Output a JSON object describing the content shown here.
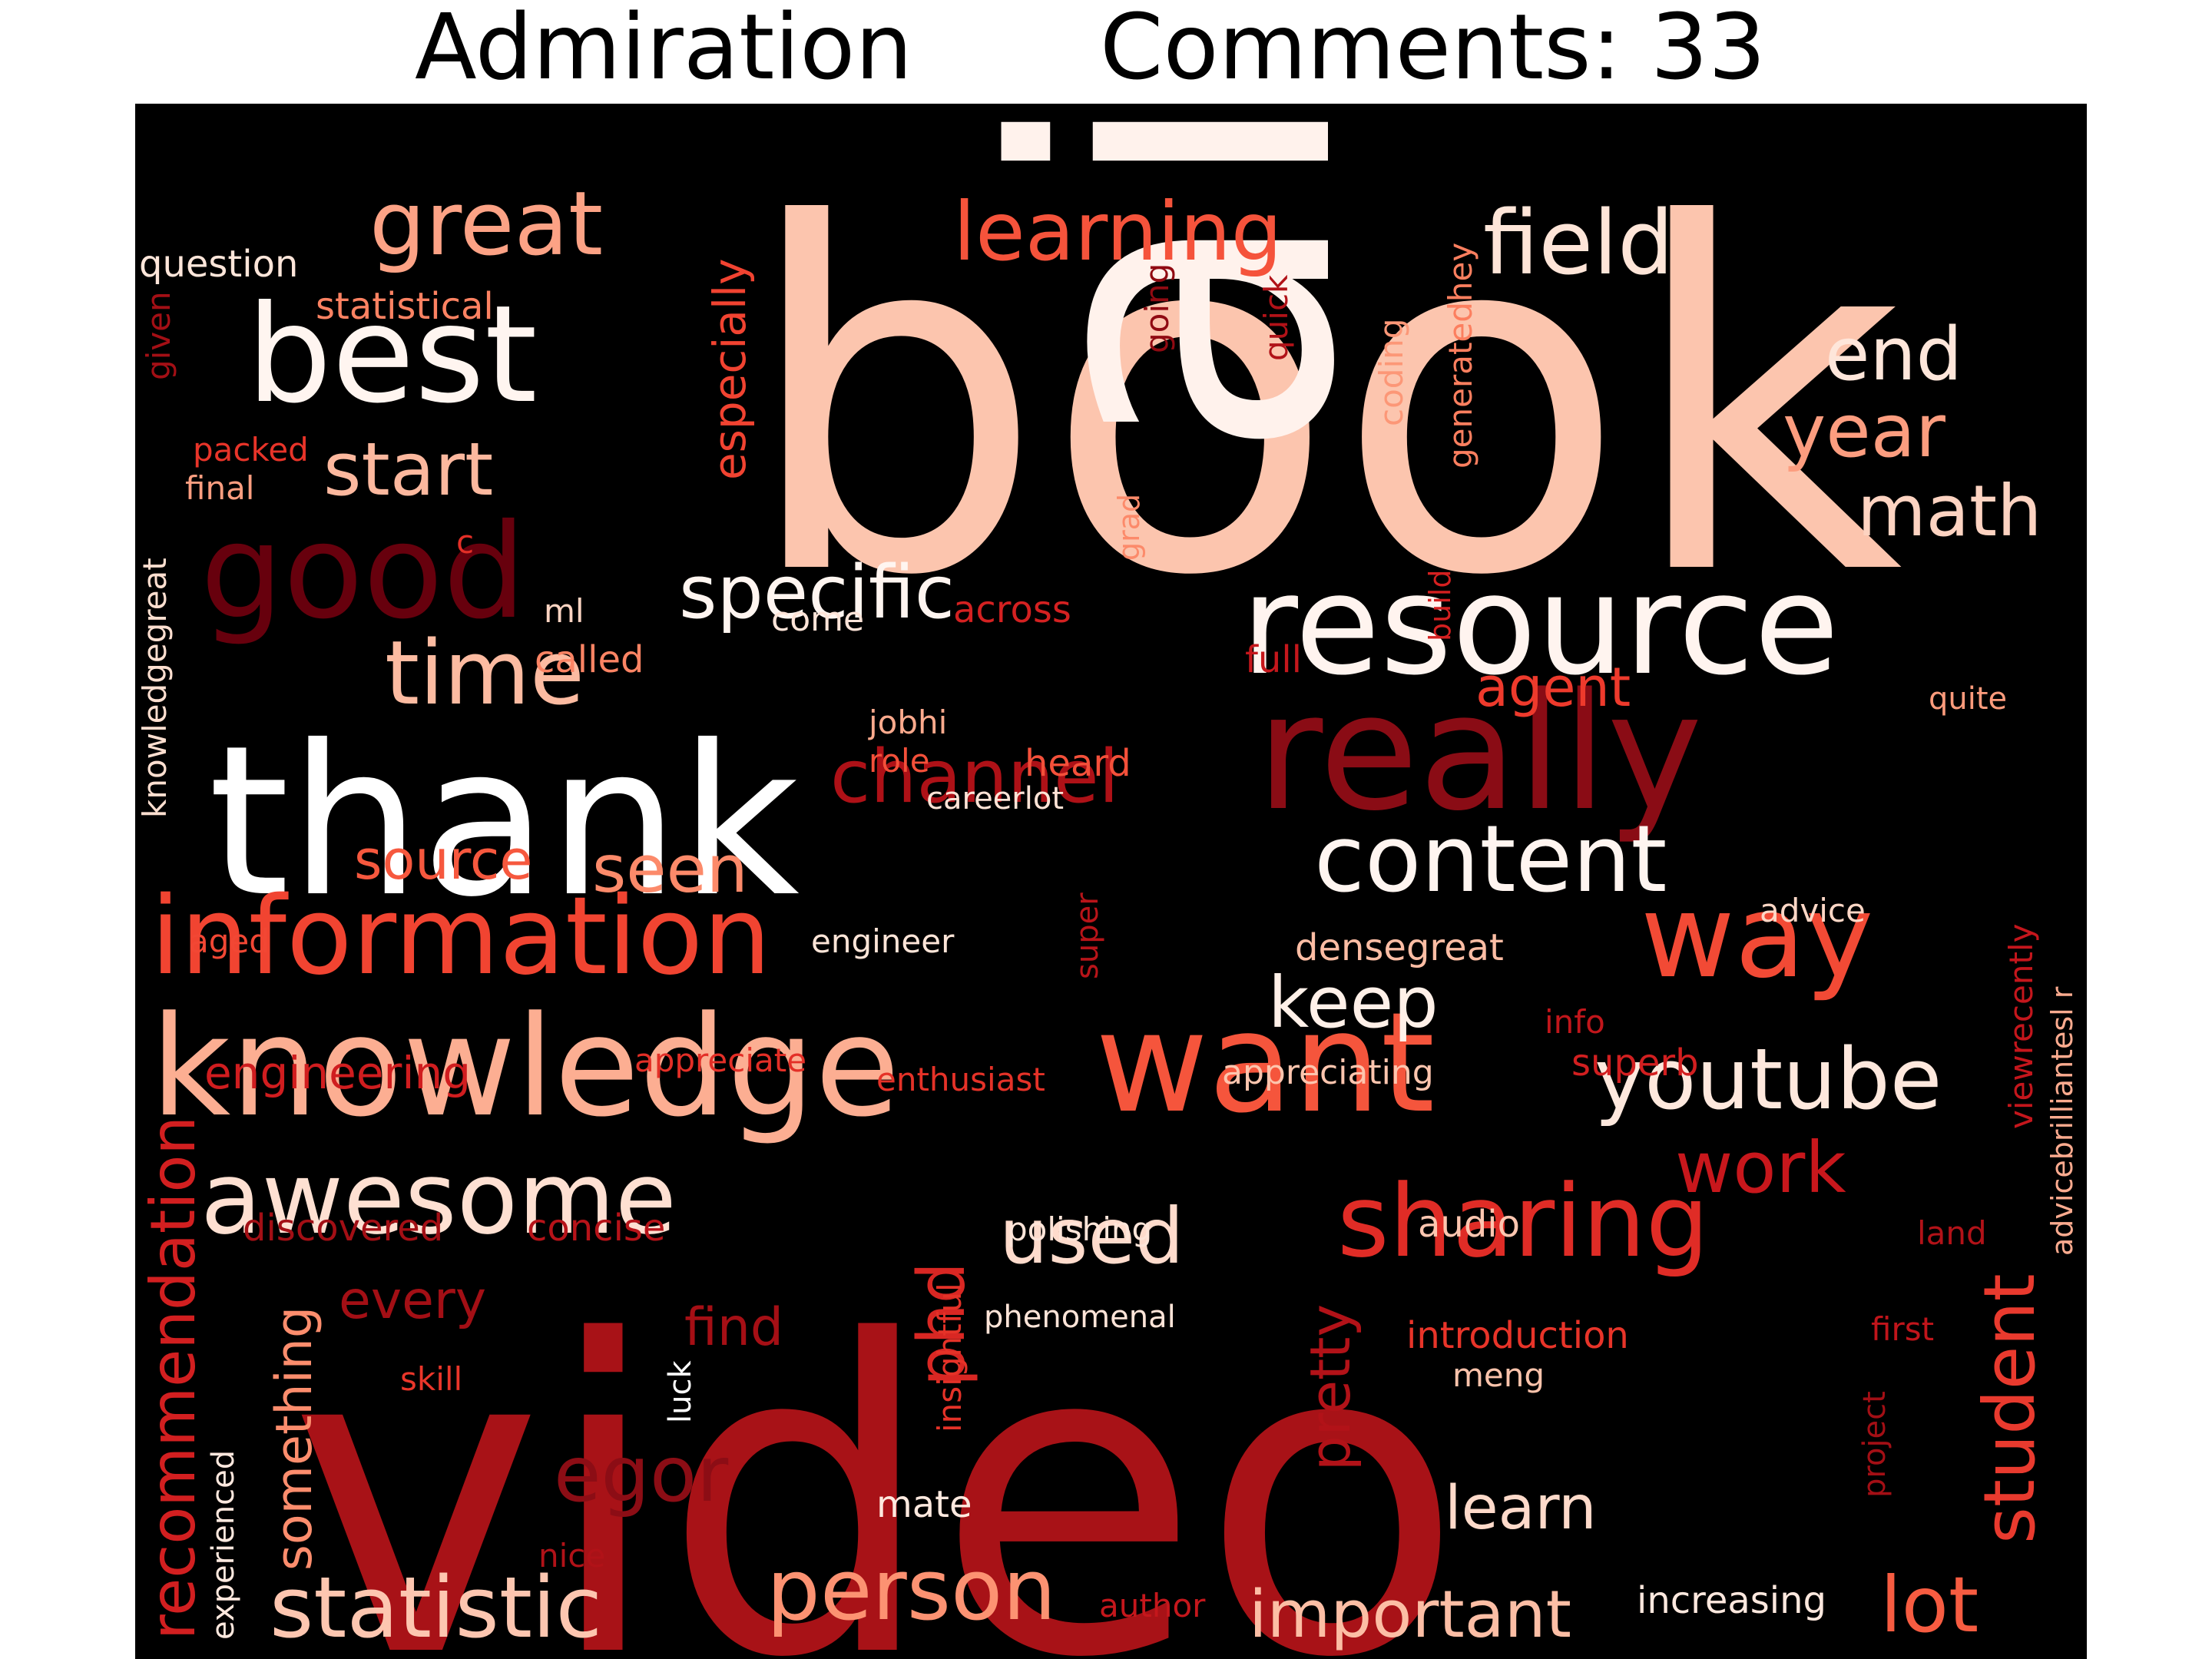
{
  "title": {
    "emotion": "Admiration",
    "comments": "Comments: 33"
  },
  "words": [
    {
      "text": "book",
      "color": "#fcc5ae",
      "weight": 1.0
    },
    {
      "text": "video",
      "color": "#a81217",
      "weight": 0.98
    },
    {
      "text": "ai",
      "color": "#fff2ec",
      "weight": 0.9
    },
    {
      "text": "thank",
      "color": "#ffffff",
      "weight": 0.7
    },
    {
      "text": "really",
      "color": "#8a0c15",
      "weight": 0.6
    },
    {
      "text": "resource",
      "color": "#fff4ef",
      "weight": 0.55
    },
    {
      "text": "knowledge",
      "color": "#fcae92",
      "weight": 0.55
    },
    {
      "text": "want",
      "color": "#f5553c",
      "weight": 0.55
    },
    {
      "text": "good",
      "color": "#67000d",
      "weight": 0.5
    },
    {
      "text": "best",
      "color": "#fff5f0",
      "weight": 0.5
    },
    {
      "text": "information",
      "color": "#f14431",
      "weight": 0.45
    },
    {
      "text": "way",
      "color": "#f24a35",
      "weight": 0.45
    },
    {
      "text": "awesome",
      "color": "#fee0d2",
      "weight": 0.4
    },
    {
      "text": "content",
      "color": "#fff5f0",
      "weight": 0.4
    },
    {
      "text": "sharing",
      "color": "#e02c26",
      "weight": 0.4
    },
    {
      "text": "youtube",
      "color": "#fee8dd",
      "weight": 0.35
    },
    {
      "text": "statistic",
      "color": "#fdc6b0",
      "weight": 0.35
    },
    {
      "text": "person",
      "color": "#fc9272",
      "weight": 0.32
    },
    {
      "text": "time",
      "color": "#fcbba1",
      "weight": 0.32
    },
    {
      "text": "great",
      "color": "#fca285",
      "weight": 0.3
    },
    {
      "text": "learning",
      "color": "#f5533b",
      "weight": 0.3
    },
    {
      "text": "field",
      "color": "#fee5d8",
      "weight": 0.3
    },
    {
      "text": "recommendation",
      "color": "#d21f20",
      "weight": 0.3
    },
    {
      "text": "student",
      "color": "#e93a2e",
      "weight": 0.3
    },
    {
      "text": "egor",
      "color": "#8c0d15",
      "weight": 0.28
    },
    {
      "text": "important",
      "color": "#fcbea5",
      "weight": 0.28
    },
    {
      "text": "channel",
      "color": "#ae1117",
      "weight": 0.28
    },
    {
      "text": "specific",
      "color": "#fff5f0",
      "weight": 0.28
    },
    {
      "text": "work",
      "color": "#c8171c",
      "weight": 0.26
    },
    {
      "text": "used",
      "color": "#fedbcc",
      "weight": 0.26
    },
    {
      "text": "lot",
      "color": "#f75c41",
      "weight": 0.26
    },
    {
      "text": "keep",
      "color": "#fff0e8",
      "weight": 0.25
    },
    {
      "text": "start",
      "color": "#fcb89e",
      "weight": 0.25
    },
    {
      "text": "end",
      "color": "#fee6da",
      "weight": 0.24
    },
    {
      "text": "year",
      "color": "#fc9d7f",
      "weight": 0.24
    },
    {
      "text": "math",
      "color": "#fdd3c1",
      "weight": 0.24
    },
    {
      "text": "seen",
      "color": "#fc8a6a",
      "weight": 0.22
    },
    {
      "text": "phd",
      "color": "#d92723",
      "weight": 0.22
    },
    {
      "text": "learn",
      "color": "#fedaca",
      "weight": 0.22
    },
    {
      "text": "something",
      "color": "#fc8d6d",
      "weight": 0.2
    },
    {
      "text": "pretty",
      "color": "#b21218",
      "weight": 0.2
    },
    {
      "text": "especially",
      "color": "#f14331",
      "weight": 0.2
    },
    {
      "text": "find",
      "color": "#a50f15",
      "weight": 0.18
    },
    {
      "text": "every",
      "color": "#a30f15",
      "weight": 0.18
    },
    {
      "text": "source",
      "color": "#f6583e",
      "weight": 0.18
    },
    {
      "text": "agent",
      "color": "#ee3a2c",
      "weight": 0.18
    },
    {
      "text": "engineering",
      "color": "#d01d1f",
      "weight": 0.16
    },
    {
      "text": "question",
      "color": "#fee6da",
      "weight": 0.12
    },
    {
      "text": "statistical",
      "color": "#fc8262",
      "weight": 0.12
    },
    {
      "text": "given",
      "color": "#a30f15",
      "weight": 0.1
    },
    {
      "text": "packed",
      "color": "#e83429",
      "weight": 0.1
    },
    {
      "text": "final",
      "color": "#fc9e80",
      "weight": 0.1
    },
    {
      "text": "c",
      "color": "#e32f27",
      "weight": 0.1
    },
    {
      "text": "ml",
      "color": "#fdd4c2",
      "weight": 0.1
    },
    {
      "text": "knowledgegreat",
      "color": "#fedfd0",
      "weight": 0.1
    },
    {
      "text": "come",
      "color": "#fee4d8",
      "weight": 0.1
    },
    {
      "text": "called",
      "color": "#fc8464",
      "weight": 0.1
    },
    {
      "text": "across",
      "color": "#d42121",
      "weight": 0.1
    },
    {
      "text": "grad",
      "color": "#fc8a6a",
      "weight": 0.1
    },
    {
      "text": "quick",
      "color": "#b11218",
      "weight": 0.1
    },
    {
      "text": "going",
      "color": "#900a12",
      "weight": 0.1
    },
    {
      "text": "coding",
      "color": "#fc9777",
      "weight": 0.1
    },
    {
      "text": "generatedhey",
      "color": "#fc7f5f",
      "weight": 0.1
    },
    {
      "text": "full",
      "color": "#c5171c",
      "weight": 0.1
    },
    {
      "text": "build",
      "color": "#d42020",
      "weight": 0.1
    },
    {
      "text": "quite",
      "color": "#fc9b7c",
      "weight": 0.1
    },
    {
      "text": "jobhi",
      "color": "#fcaa8d",
      "weight": 0.1
    },
    {
      "text": "role",
      "color": "#f4503a",
      "weight": 0.1
    },
    {
      "text": "heard",
      "color": "#f4503a",
      "weight": 0.1
    },
    {
      "text": "careerlot",
      "color": "#fee3d6",
      "weight": 0.1
    },
    {
      "text": "aged",
      "color": "#f24734",
      "weight": 0.1
    },
    {
      "text": "engineer",
      "color": "#fee5d8",
      "weight": 0.1
    },
    {
      "text": "super",
      "color": "#b81419",
      "weight": 0.1
    },
    {
      "text": "densegreat",
      "color": "#fcbda4",
      "weight": 0.1
    },
    {
      "text": "advice",
      "color": "#fdd7c6",
      "weight": 0.1
    },
    {
      "text": "info",
      "color": "#c1161b",
      "weight": 0.1
    },
    {
      "text": "superb",
      "color": "#d21f20",
      "weight": 0.1
    },
    {
      "text": "viewrecently",
      "color": "#c4161c",
      "weight": 0.1
    },
    {
      "text": "advicebrilliantesl r",
      "color": "#fcab8f",
      "weight": 0.1
    },
    {
      "text": "appreciate",
      "color": "#e32f27",
      "weight": 0.1
    },
    {
      "text": "enthusiast",
      "color": "#e53228",
      "weight": 0.1
    },
    {
      "text": "appreciating",
      "color": "#fdc5ae",
      "weight": 0.1
    },
    {
      "text": "discovered",
      "color": "#a30f15",
      "weight": 0.1
    },
    {
      "text": "concise",
      "color": "#b71319",
      "weight": 0.1
    },
    {
      "text": "polishing",
      "color": "#fee5d9",
      "weight": 0.1
    },
    {
      "text": "audio",
      "color": "#fdc6b0",
      "weight": 0.1
    },
    {
      "text": "land",
      "color": "#b21218",
      "weight": 0.1
    },
    {
      "text": "phenomenal",
      "color": "#fee4d8",
      "weight": 0.1
    },
    {
      "text": "introduction",
      "color": "#e83429",
      "weight": 0.1
    },
    {
      "text": "first",
      "color": "#c0151b",
      "weight": 0.1
    },
    {
      "text": "insightful",
      "color": "#e53228",
      "weight": 0.1
    },
    {
      "text": "skill",
      "color": "#ea362a",
      "weight": 0.1
    },
    {
      "text": "meng",
      "color": "#fcc3ab",
      "weight": 0.1
    },
    {
      "text": "luck",
      "color": "#ffffff",
      "weight": 0.1
    },
    {
      "text": "project",
      "color": "#a30f15",
      "weight": 0.1
    },
    {
      "text": "mate",
      "color": "#fee9df",
      "weight": 0.1
    },
    {
      "text": "experienced",
      "color": "#fee8de",
      "weight": 0.1
    },
    {
      "text": "nice",
      "color": "#b11218",
      "weight": 0.1
    },
    {
      "text": "author",
      "color": "#c5171c",
      "weight": 0.1
    },
    {
      "text": "increasing",
      "color": "#fee8de",
      "weight": 0.1
    }
  ]
}
